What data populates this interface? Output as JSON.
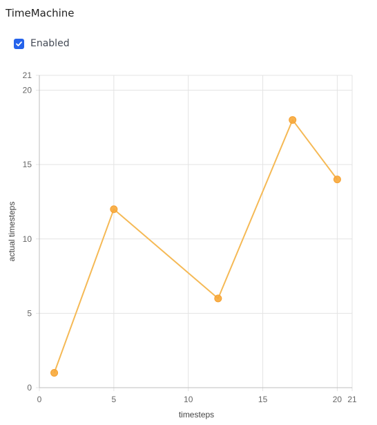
{
  "app": {
    "title": "TimeMachine"
  },
  "controls": {
    "enabled_label": "Enabled",
    "enabled_checked": true,
    "check_color": "#2563eb"
  },
  "chart_data": {
    "type": "line",
    "x": [
      1,
      5,
      12,
      17,
      20
    ],
    "series": [
      {
        "values": [
          1,
          12,
          6,
          18,
          14
        ]
      }
    ],
    "xlabel": "timesteps",
    "ylabel": "actual timesteps",
    "xlim": [
      0,
      21
    ],
    "ylim": [
      0,
      21
    ],
    "xticks": [
      0,
      5,
      10,
      15,
      20,
      21
    ],
    "yticks": [
      0,
      5,
      10,
      15,
      20,
      21
    ],
    "grid": true,
    "line_color": "#f5b955",
    "point_color": "#f7a83a"
  }
}
